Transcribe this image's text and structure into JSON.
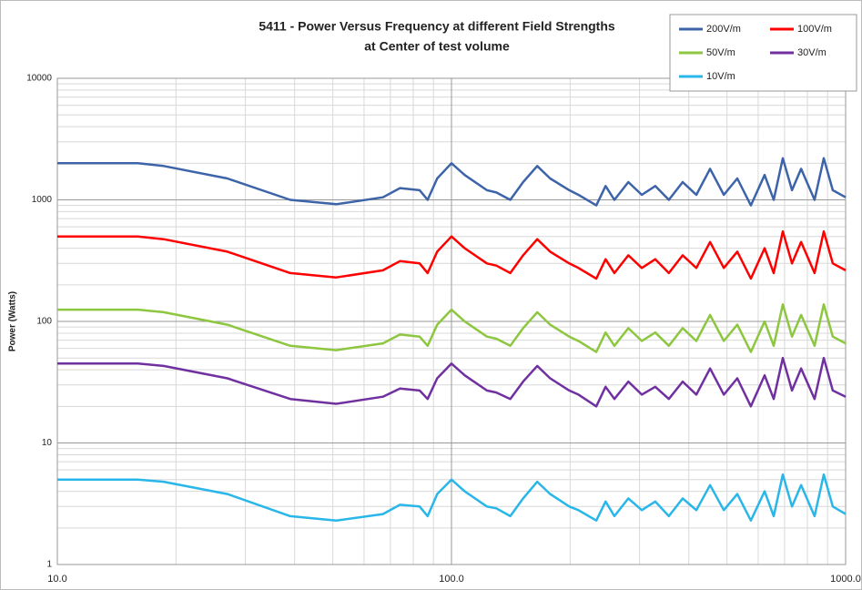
{
  "chart_data": {
    "type": "line",
    "title": [
      "5411 - Power Versus Frequency at different Field Strengths",
      "at Center of test volume"
    ],
    "y_label": "Power (Watts)",
    "xlog": true,
    "ylog": true,
    "grid": true,
    "legend": "top-right",
    "xlim": [
      10,
      1000
    ],
    "ylim": [
      1,
      10000
    ],
    "xticks": [
      {
        "value": 10,
        "label": "10.0"
      },
      {
        "value": 100,
        "label": "100.0"
      },
      {
        "value": 1000,
        "label": "1000.0"
      }
    ],
    "yticks": [
      1,
      10,
      100,
      1000,
      10000
    ],
    "x": [
      10,
      16,
      18.6,
      27,
      39,
      51,
      67,
      74,
      83,
      87,
      92,
      100,
      108,
      123,
      130,
      141,
      152,
      165,
      178,
      199,
      210,
      233,
      246,
      259,
      281,
      304,
      329,
      356,
      386,
      418,
      453,
      491,
      531,
      575,
      623,
      657,
      693,
      731,
      771,
      834,
      880,
      928,
      1000
    ],
    "series": [
      {
        "name": "200V/m",
        "color": "#3d64a8",
        "values": [
          2000,
          2000,
          1900,
          1500,
          1000,
          920,
          1050,
          1250,
          1200,
          1000,
          1500,
          2000,
          1600,
          1200,
          1150,
          1000,
          1400,
          1900,
          1500,
          1200,
          1100,
          900,
          1300,
          1000,
          1400,
          1100,
          1300,
          1000,
          1400,
          1100,
          1800,
          1100,
          1500,
          900,
          1600,
          1000,
          2200,
          1200,
          1800,
          1000,
          2200,
          1200,
          1050
        ]
      },
      {
        "name": "100V/m",
        "color": "#ff0000",
        "values": [
          500,
          500,
          475,
          375,
          250,
          230,
          263,
          313,
          300,
          250,
          375,
          500,
          400,
          300,
          288,
          250,
          350,
          475,
          375,
          300,
          275,
          225,
          325,
          250,
          350,
          275,
          325,
          250,
          350,
          275,
          450,
          275,
          375,
          225,
          400,
          250,
          550,
          300,
          450,
          250,
          550,
          300,
          263
        ]
      },
      {
        "name": "50V/m",
        "color": "#8dc63f",
        "values": [
          125,
          125,
          119,
          94,
          63,
          58,
          66,
          78,
          75,
          63,
          94,
          125,
          100,
          75,
          72,
          63,
          88,
          119,
          94,
          75,
          69,
          56,
          81,
          63,
          88,
          69,
          81,
          63,
          88,
          69,
          113,
          69,
          94,
          56,
          100,
          63,
          138,
          75,
          113,
          63,
          138,
          75,
          66
        ]
      },
      {
        "name": "30V/m",
        "color": "#7030a0",
        "values": [
          45,
          45,
          43,
          34,
          23,
          21,
          24,
          28,
          27,
          23,
          34,
          45,
          36,
          27,
          26,
          23,
          32,
          43,
          34,
          27,
          25,
          20,
          29,
          23,
          32,
          25,
          29,
          23,
          32,
          25,
          41,
          25,
          34,
          20,
          36,
          23,
          50,
          27,
          41,
          23,
          50,
          27,
          24
        ]
      },
      {
        "name": "10V/m",
        "color": "#29b6e8",
        "values": [
          5,
          5,
          4.8,
          3.8,
          2.5,
          2.3,
          2.6,
          3.1,
          3,
          2.5,
          3.8,
          5,
          4,
          3,
          2.9,
          2.5,
          3.5,
          4.8,
          3.8,
          3,
          2.8,
          2.3,
          3.3,
          2.5,
          3.5,
          2.8,
          3.3,
          2.5,
          3.5,
          2.8,
          4.5,
          2.8,
          3.8,
          2.3,
          4,
          2.5,
          5.5,
          3,
          4.5,
          2.5,
          5.5,
          3,
          2.6
        ]
      }
    ]
  }
}
